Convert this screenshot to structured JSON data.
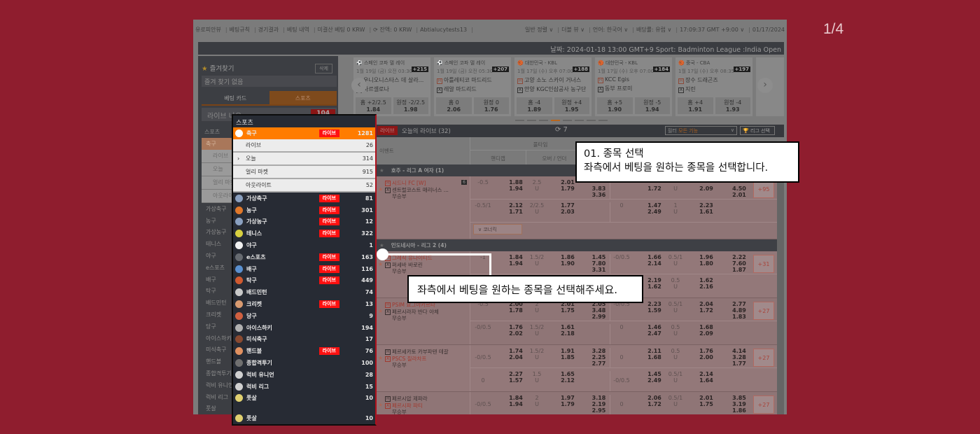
{
  "pager": "1/4",
  "top_links": {
    "left": [
      "유로피안뷰",
      "베팅규칙",
      "경기결과",
      "베팅 내역",
      "미결산 베팅 0 KRW",
      "⟳ 잔액: 0 KRW",
      "Abtialucytests13"
    ],
    "right": [
      "일반 정렬 ∨",
      "더블 뷰 ∨",
      "언어: 한국어 ∨",
      "배당률: 유럽 ∨",
      "17:09:37 GMT +9:00 ∨",
      "01/17/2024"
    ]
  },
  "header": "날짜: 2024-01-18 13:00 GMT+9 Sport: Badminton League :India Open",
  "sidebar": {
    "fav_title": "즐겨찾기",
    "fav_delete": "삭제",
    "fav_empty": "즐겨 찾기 없음",
    "tabs": [
      "베팅 카드",
      "스포츠"
    ],
    "live_now": "라이브 나우",
    "live_now_count": "104"
  },
  "sports": {
    "title": "스포츠",
    "live_label": "라이브",
    "active": {
      "name": "축구",
      "count": "1281",
      "live": true
    },
    "sub": [
      {
        "name": "라이브",
        "count": "26"
      },
      {
        "name": "오늘",
        "count": "314",
        "chevron": true
      },
      {
        "name": "얼리 마켓",
        "count": "915"
      },
      {
        "name": "아웃라이트",
        "count": "52"
      }
    ],
    "items": [
      {
        "name": "가상축구",
        "count": "81",
        "live": true,
        "color": "#8aa0c0"
      },
      {
        "name": "농구",
        "count": "301",
        "live": true,
        "color": "#e0782a"
      },
      {
        "name": "가상농구",
        "count": "12",
        "live": true,
        "color": "#8aa0c0"
      },
      {
        "name": "테니스",
        "count": "322",
        "live": true,
        "color": "#d8d040"
      },
      {
        "name": "야구",
        "count": "1",
        "live": false,
        "color": "#f0f0f0"
      },
      {
        "name": "e스포츠",
        "count": "163",
        "live": true,
        "color": "#666a70"
      },
      {
        "name": "배구",
        "count": "116",
        "live": true,
        "color": "#5a90d0"
      },
      {
        "name": "탁구",
        "count": "449",
        "live": true,
        "color": "#d05a30"
      },
      {
        "name": "배드민턴",
        "count": "74",
        "live": false,
        "color": "#c8c8c8"
      },
      {
        "name": "크리켓",
        "count": "13",
        "live": true,
        "color": "#d89a70"
      },
      {
        "name": "당구",
        "count": "9",
        "live": false,
        "color": "#d06040"
      },
      {
        "name": "아이스하키",
        "count": "194",
        "live": false,
        "color": "#b0b0b0"
      },
      {
        "name": "미식축구",
        "count": "17",
        "live": false,
        "color": "#8a4a30"
      },
      {
        "name": "핸드볼",
        "count": "76",
        "live": true,
        "color": "#e09060"
      },
      {
        "name": "종합격투기",
        "count": "100",
        "live": false,
        "color": "#707070"
      },
      {
        "name": "럭비 유니언",
        "count": "28",
        "live": false,
        "color": "#d0d0d0"
      },
      {
        "name": "럭비 리그",
        "count": "15",
        "live": false,
        "color": "#d0d0d0"
      },
      {
        "name": "풋살",
        "count": "10",
        "live": false,
        "color": "#e0d070"
      }
    ],
    "footer": {
      "name": "풋살",
      "count": "10",
      "color": "#e0d070"
    }
  },
  "carousel": [
    {
      "league": "⚽ 스페인 코파 델 레이",
      "date": "1월 19일 (금) 오전 03:30",
      "count": "+215",
      "home": "우니오니스타스 데 살라...",
      "away": "바르셀로나",
      "odds": [
        "홈 +2/2.5",
        "1.84",
        "원정 -2/2.5",
        "1.98"
      ]
    },
    {
      "league": "⚽ 스페인 코파 델 레이",
      "date": "1월 19일 (금) 오전 05:30",
      "count": "+207",
      "home": "아틀레티코 마드리드",
      "away": "레알 마드리드",
      "odds": [
        "홈 0",
        "2.06",
        "원정 0",
        "1.76"
      ]
    },
    {
      "league": "🏀 대한민국 - KBL",
      "date": "1월 17일 (수) 오후 07:00",
      "count": "+188",
      "home": "고양 소노 스카이 거너스",
      "away": "안양 KGC인삼공사 농구단",
      "odds": [
        "홈 -4",
        "1.89",
        "원정 +4",
        "1.95"
      ]
    },
    {
      "league": "🏀 대한민국 - KBL",
      "date": "1월 17일 (수) 오후 07:00",
      "count": "+184",
      "home": "KCC Egis",
      "away": "동부 프로미",
      "odds": [
        "홈 +5",
        "1.90",
        "원정 -5",
        "1.94"
      ]
    },
    {
      "league": "🏀 중국 - CBA",
      "date": "1월 17일 (수) 오후 08:35",
      "count": "+197",
      "home": "장수 드래곤즈",
      "away": "지린",
      "odds": [
        "홈 +4",
        "1.91",
        "원정 -4",
        "1.93"
      ]
    }
  ],
  "carousel_active_page": 4,
  "table": {
    "live_badge": "라이브",
    "title": "오늘의 라이브 (32)",
    "refresh": "⟳ 7",
    "filter_label": "필터",
    "filter_value": "모든 기능",
    "league_select": "🏆 리그 선택",
    "col_event": "이벤트",
    "col_fulltime": "풀타임",
    "col_handicap": "핸디캡",
    "col_ou": "오버 / 언더",
    "draw": "무승부",
    "corner": "∨ 코너킥"
  },
  "leagues": [
    {
      "name": "호주 - 리그 A 여자 (1)",
      "matches": [
        {
          "home": "시드니 FC [W]",
          "away": "센트럴코스트 매리너스 ...",
          "home_red": true,
          "badge": "6",
          "more": "+95",
          "corner": true,
          "lines": [
            [
              "-0.5",
              "",
              "1.88\n1.94",
              "2.5\nU",
              "",
              "2.01\n1.79",
              "",
              "\n3.83\n3.36",
              "",
              "",
              "\n1.72",
              "\nU",
              "",
              "\n2.09",
              "",
              "\n4.50\n2.01"
            ],
            [
              "-0.5/1",
              "",
              "2.12\n1.71",
              "2/2.5\nU",
              "",
              "1.77\n2.03",
              "",
              "",
              "0",
              "",
              "1.47\n2.49",
              "1\nU",
              "",
              "2.23\n1.61",
              "",
              ""
            ]
          ]
        }
      ]
    },
    {
      "name": "인도네시아 - 리그 2 (4)",
      "matches": [
        {
          "home": "그레식 유나이티드",
          "away": "퍼세바 바로린",
          "home_red": true,
          "more": "+31",
          "lines": [
            [
              "-1",
              "",
              "1.84\n1.94",
              "1.5/2\nU",
              "",
              "1.86\n1.90",
              "",
              "1.45\n7.80\n3.31",
              "-0/0.5",
              "",
              "1.66\n2.14",
              "0.5/1\nU",
              "",
              "1.96\n1.80",
              "",
              "2.22\n7.60\n1.87"
            ],
            [
              "",
              "",
              "",
              "",
              "",
              "",
              "",
              "",
              "",
              "",
              "2.19\n1.62",
              "0.5\nU",
              "",
              "1.62\n2.16",
              "",
              ""
            ]
          ]
        },
        {
          "home": "PSIM 요그야카르타",
          "away": "페르시라자 반다 아체",
          "home_red": true,
          "more": "+27",
          "lines": [
            [
              "-0.5",
              "",
              "2.00\n1.78",
              "2\nU",
              "",
              "2.01\n1.75",
              "",
              "2.05\n3.48\n2.99",
              "-0/0.5",
              "",
              "2.23\n1.59",
              "0.5/1\nU",
              "",
              "2.04\n1.72",
              "",
              "2.77\n4.89\n1.83"
            ],
            [
              "-0/0.5",
              "",
              "1.76\n2.02",
              "1.5/2\nU",
              "",
              "1.61\n2.18",
              "",
              "",
              "0",
              "",
              "1.46\n2.47",
              "0.5\nU",
              "",
              "1.68\n2.09",
              "",
              ""
            ]
          ]
        },
        {
          "home": "페르세카토 카부파텐 테갈",
          "away": "PSCS 칠라차프",
          "away_red": true,
          "more": "+27",
          "lines": [
            [
              "\n-0/0.5",
              "",
              "1.74\n2.04",
              "1.5/2\nU",
              "",
              "1.91\n1.85",
              "",
              "3.28\n2.25\n2.77",
              "\n0",
              "",
              "2.11\n1.68",
              "0.5\nU",
              "",
              "1.76\n2.00",
              "",
              "4.14\n3.28\n1.77"
            ],
            [
              "\n0",
              "",
              "2.27\n1.57",
              "1.5\nU",
              "",
              "1.65\n2.12",
              "",
              "",
              "\n-0/0.5",
              "",
              "1.45\n2.49",
              "0.5/1\nU",
              "",
              "2.14\n1.64",
              "",
              ""
            ]
          ]
        },
        {
          "home": "페르시압 제파라",
          "away": "페르시파 파티",
          "away_red": true,
          "more": "+27",
          "lines": [
            [
              "\n-0/0.5",
              "",
              "1.84\n1.94",
              "2\nU",
              "",
              "1.97\n1.79",
              "",
              "3.18\n2.19\n2.95",
              "\n0",
              "",
              "2.06\n1.72",
              "0.5/1\nU",
              "",
              "2.01\n1.75",
              "",
              "3.85\n3.19\n1.86"
            ]
          ]
        }
      ]
    }
  ],
  "callouts": {
    "step_title": "01. 종목 선택",
    "step_desc": "좌측에서 베팅을 원하는 종목을 선택합니다.",
    "hint": "좌측에서 베팅을 원하는 종목을 선택해주세요."
  }
}
